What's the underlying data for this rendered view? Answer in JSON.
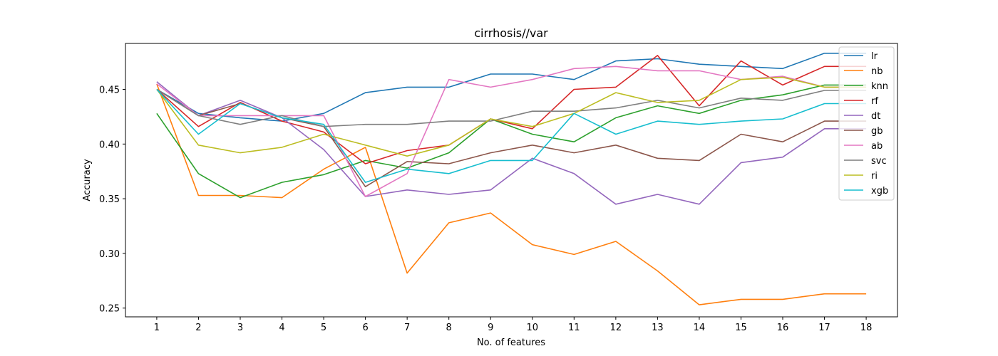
{
  "chart_data": {
    "type": "line",
    "title": "cirrhosis//var",
    "xlabel": "No. of features",
    "ylabel": "Accuracy",
    "x": [
      1,
      2,
      3,
      4,
      5,
      6,
      7,
      8,
      9,
      10,
      11,
      12,
      13,
      14,
      15,
      16,
      17,
      18
    ],
    "xlim": [
      0.25,
      18.75
    ],
    "ylim": [
      0.242,
      0.492
    ],
    "yticks": [
      "0.25",
      "0.30",
      "0.35",
      "0.40",
      "0.45"
    ],
    "ytick_values": [
      0.25,
      0.3,
      0.35,
      0.4,
      0.45
    ],
    "grid": false,
    "legend_position": "top-right",
    "series": [
      {
        "name": "lr",
        "color": "#1f77b4",
        "values": [
          0.45,
          0.428,
          0.424,
          0.421,
          0.428,
          0.447,
          0.452,
          0.452,
          0.464,
          0.464,
          0.459,
          0.476,
          0.478,
          0.473,
          0.471,
          0.469,
          0.483,
          0.483
        ]
      },
      {
        "name": "nb",
        "color": "#ff7f0e",
        "values": [
          0.455,
          0.353,
          0.353,
          0.351,
          0.377,
          0.397,
          0.282,
          0.328,
          0.337,
          0.308,
          0.299,
          0.311,
          0.284,
          0.253,
          0.258,
          0.258,
          0.263,
          0.263
        ]
      },
      {
        "name": "knn",
        "color": "#2ca02c",
        "values": [
          0.428,
          0.373,
          0.351,
          0.365,
          0.372,
          0.385,
          0.378,
          0.392,
          0.423,
          0.409,
          0.402,
          0.424,
          0.435,
          0.428,
          0.44,
          0.445,
          0.454,
          0.454
        ]
      },
      {
        "name": "rf",
        "color": "#d62728",
        "values": [
          0.45,
          0.416,
          0.438,
          0.421,
          0.411,
          0.382,
          0.394,
          0.399,
          0.423,
          0.414,
          0.45,
          0.452,
          0.481,
          0.435,
          0.476,
          0.454,
          0.471,
          0.471
        ]
      },
      {
        "name": "dt",
        "color": "#9467bd",
        "values": [
          0.457,
          0.426,
          0.44,
          0.424,
          0.395,
          0.352,
          0.358,
          0.354,
          0.358,
          0.387,
          0.373,
          0.345,
          0.354,
          0.345,
          0.383,
          0.388,
          0.414,
          0.414
        ]
      },
      {
        "name": "gb",
        "color": "#8c564b",
        "values": [
          0.45,
          0.426,
          0.437,
          0.424,
          0.416,
          0.361,
          0.384,
          0.382,
          0.392,
          0.399,
          0.392,
          0.399,
          0.387,
          0.385,
          0.409,
          0.402,
          0.421,
          0.421
        ]
      },
      {
        "name": "ab",
        "color": "#e377c2",
        "values": [
          0.455,
          0.426,
          0.426,
          0.426,
          0.426,
          0.352,
          0.373,
          0.459,
          0.452,
          0.459,
          0.469,
          0.471,
          0.467,
          0.467,
          0.459,
          0.462,
          0.452,
          0.452
        ]
      },
      {
        "name": "svc",
        "color": "#7f7f7f",
        "values": [
          0.45,
          0.426,
          0.418,
          0.426,
          0.416,
          0.418,
          0.418,
          0.421,
          0.421,
          0.43,
          0.43,
          0.433,
          0.44,
          0.433,
          0.442,
          0.44,
          0.449,
          0.449
        ]
      },
      {
        "name": "ri",
        "color": "#bcbd22",
        "values": [
          0.45,
          0.399,
          0.392,
          0.397,
          0.409,
          0.399,
          0.389,
          0.399,
          0.423,
          0.416,
          0.428,
          0.447,
          0.438,
          0.44,
          0.459,
          0.461,
          0.452,
          0.452
        ]
      },
      {
        "name": "xgb",
        "color": "#17becf",
        "values": [
          0.45,
          0.409,
          0.437,
          0.424,
          0.418,
          0.365,
          0.377,
          0.373,
          0.385,
          0.385,
          0.428,
          0.409,
          0.421,
          0.418,
          0.421,
          0.423,
          0.437,
          0.437
        ]
      }
    ]
  }
}
